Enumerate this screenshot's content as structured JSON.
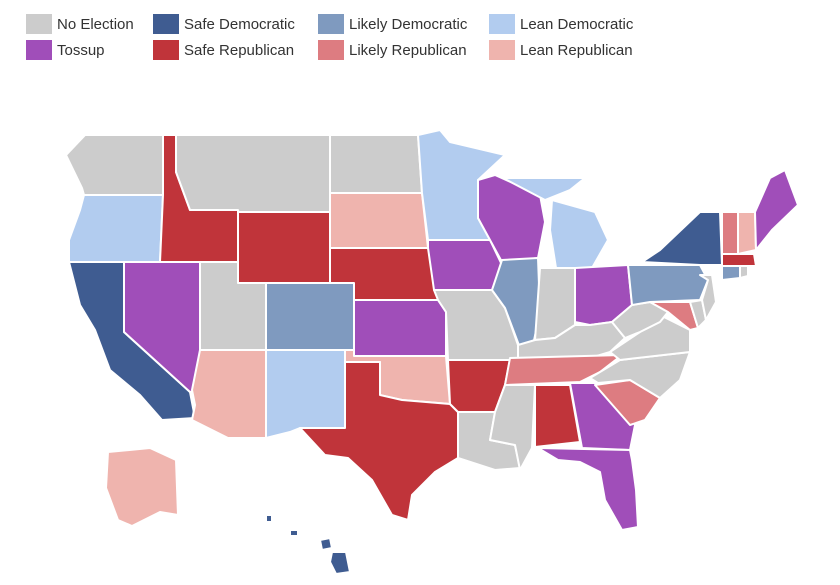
{
  "legend": {
    "items": [
      {
        "key": "none",
        "label": "No Election",
        "color": "#cccccc"
      },
      {
        "key": "safe_dem",
        "label": "Safe Democratic",
        "color": "#3f5c91"
      },
      {
        "key": "likely_dem",
        "label": "Likely Democratic",
        "color": "#7f9abf"
      },
      {
        "key": "lean_dem",
        "label": "Lean Democratic",
        "color": "#b2ccef"
      },
      {
        "key": "tossup",
        "label": "Tossup",
        "color": "#a04eb9"
      },
      {
        "key": "safe_rep",
        "label": "Safe Republican",
        "color": "#c0343a"
      },
      {
        "key": "likely_rep",
        "label": "Likely Republican",
        "color": "#dd7c81"
      },
      {
        "key": "lean_rep",
        "label": "Lean Republican",
        "color": "#efb4ae"
      }
    ]
  },
  "states": {
    "WA": "none",
    "OR": "lean_dem",
    "CA": "safe_dem",
    "NV": "tossup",
    "ID": "safe_rep",
    "MT": "none",
    "WY": "safe_rep",
    "UT": "none",
    "AZ": "lean_rep",
    "CO": "likely_dem",
    "NM": "lean_dem",
    "ND": "none",
    "SD": "lean_rep",
    "NE": "safe_rep",
    "KS": "tossup",
    "OK": "lean_rep",
    "TX": "safe_rep",
    "MN": "lean_dem",
    "IA": "tossup",
    "MO": "none",
    "AR": "safe_rep",
    "LA": "none",
    "WI": "tossup",
    "IL": "likely_dem",
    "MI": "lean_dem",
    "IN": "none",
    "OH": "tossup",
    "KY": "none",
    "TN": "likely_rep",
    "MS": "none",
    "AL": "safe_rep",
    "GA": "tossup",
    "FL": "tossup",
    "SC": "likely_rep",
    "NC": "none",
    "VA": "none",
    "WV": "none",
    "MD": "likely_rep",
    "DE": "none",
    "NJ": "none",
    "PA": "likely_dem",
    "NY": "safe_dem",
    "CT": "likely_dem",
    "RI": "none",
    "MA": "safe_rep",
    "VT": "likely_rep",
    "NH": "lean_rep",
    "ME": "tossup",
    "AK": "lean_rep",
    "HI": "safe_dem"
  }
}
